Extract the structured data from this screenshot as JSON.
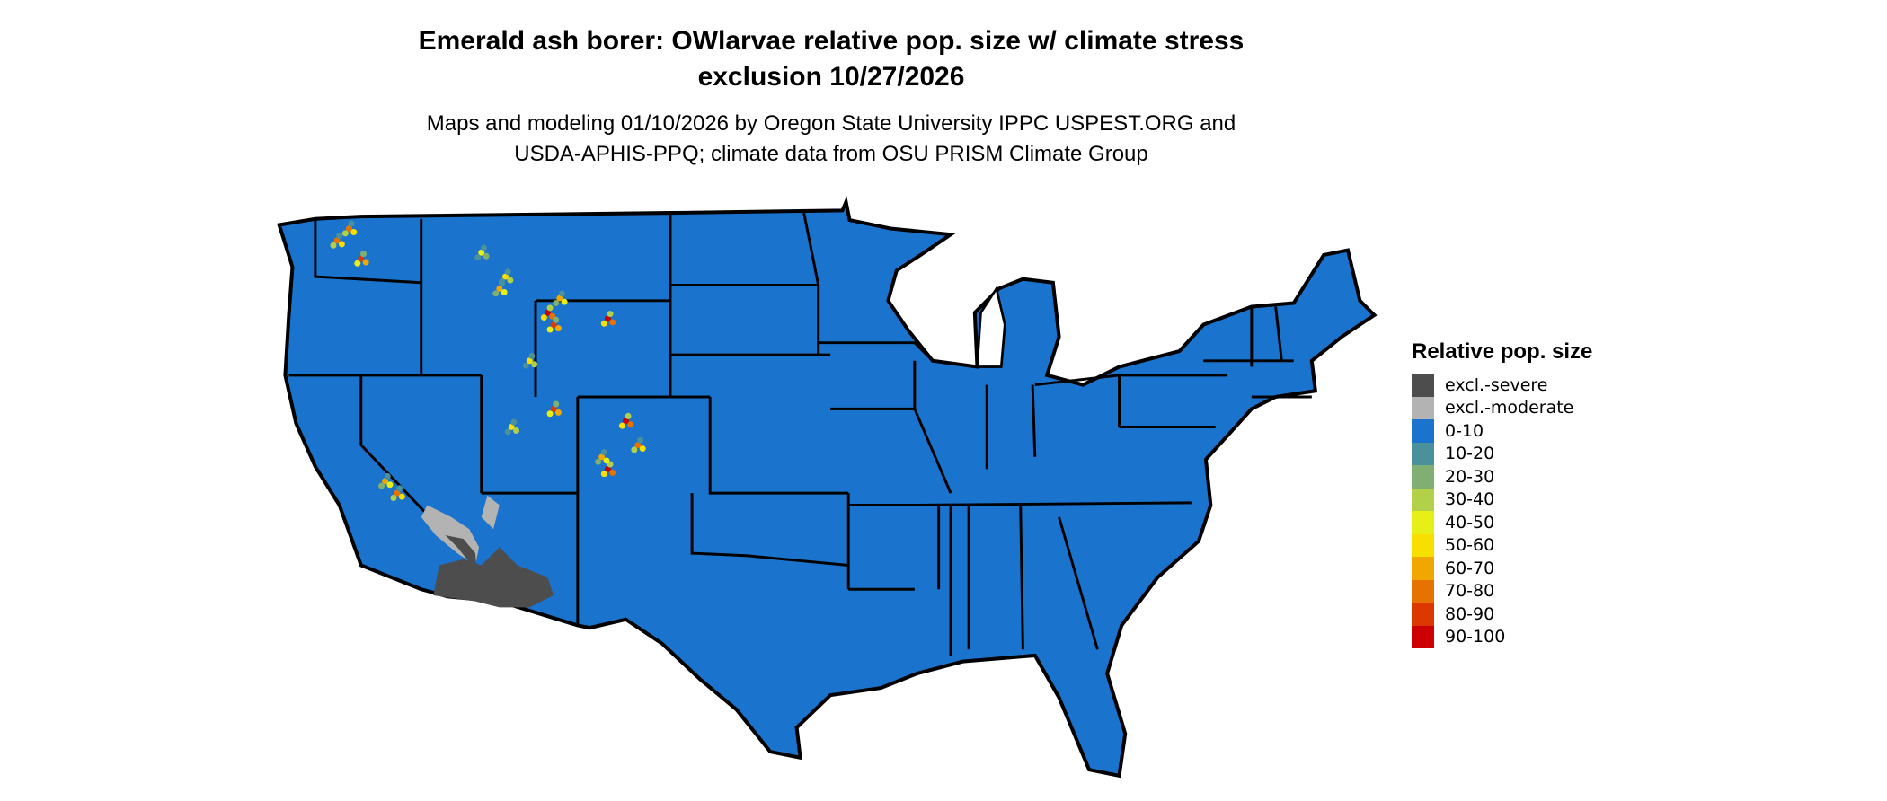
{
  "title_line1": "Emerald ash borer: OWlarvae relative pop. size w/ climate stress",
  "title_line2": "exclusion 10/27/2026",
  "subtitle_line1": "Maps and modeling 01/10/2026 by Oregon State University IPPC USPEST.ORG and",
  "subtitle_line2": "USDA-APHIS-PPQ; climate data from OSU PRISM Climate Group",
  "map": {
    "region": "Contiguous United States",
    "dominant_class": "0-10",
    "background_color": "#1A73CC",
    "border_color": "#000000"
  },
  "legend": {
    "title": "Relative pop. size",
    "items": [
      {
        "label": "excl.-severe",
        "color": "#4D4D4D"
      },
      {
        "label": "excl.-moderate",
        "color": "#B3B3B3"
      },
      {
        "label": "0-10",
        "color": "#1A73CC"
      },
      {
        "label": "10-20",
        "color": "#4A919B"
      },
      {
        "label": "20-30",
        "color": "#7FAF73"
      },
      {
        "label": "30-40",
        "color": "#B3D148"
      },
      {
        "label": "40-50",
        "color": "#E6F016"
      },
      {
        "label": "50-60",
        "color": "#F7E000"
      },
      {
        "label": "60-70",
        "color": "#F0A800"
      },
      {
        "label": "70-80",
        "color": "#E67300"
      },
      {
        "label": "80-90",
        "color": "#DC3800"
      },
      {
        "label": "90-100",
        "color": "#CC0000"
      }
    ]
  }
}
